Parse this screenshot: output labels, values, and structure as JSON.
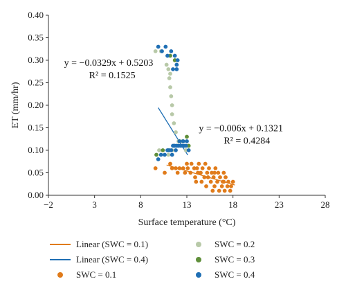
{
  "chart_data": {
    "type": "scatter",
    "xlabel": "Surface temperature (°C)",
    "ylabel": "ET (mm/hr)",
    "xlim": [
      -2,
      28
    ],
    "ylim": [
      0,
      0.4
    ],
    "x_ticks": [
      "−2",
      "3",
      "8",
      "13",
      "18",
      "23",
      "28"
    ],
    "y_ticks": [
      "0.00",
      "0.05",
      "0.10",
      "0.15",
      "0.20",
      "0.25",
      "0.30",
      "0.35",
      "0.40"
    ],
    "colors": {
      "swc01": "#e07b1a",
      "swc02": "#b8c9a8",
      "swc03": "#5f8f3a",
      "swc04": "#1f6fb4",
      "linear01": "#e07b1a",
      "linear04": "#1f6fb4"
    },
    "series": [
      {
        "name": "SWC = 0.1",
        "key": "swc01",
        "points": [
          [
            9.6,
            0.06
          ],
          [
            10.6,
            0.05
          ],
          [
            11.2,
            0.07
          ],
          [
            11.4,
            0.06
          ],
          [
            11.8,
            0.06
          ],
          [
            12.0,
            0.05
          ],
          [
            12.2,
            0.06
          ],
          [
            12.6,
            0.06
          ],
          [
            12.8,
            0.05
          ],
          [
            13.0,
            0.07
          ],
          [
            13.1,
            0.06
          ],
          [
            13.4,
            0.05
          ],
          [
            13.5,
            0.07
          ],
          [
            13.8,
            0.06
          ],
          [
            13.9,
            0.04
          ],
          [
            14.1,
            0.06
          ],
          [
            14.2,
            0.05
          ],
          [
            14.3,
            0.07
          ],
          [
            14.5,
            0.05
          ],
          [
            14.6,
            0.03
          ],
          [
            14.7,
            0.06
          ],
          [
            14.9,
            0.04
          ],
          [
            15.0,
            0.07
          ],
          [
            15.1,
            0.02
          ],
          [
            15.2,
            0.05
          ],
          [
            15.3,
            0.04
          ],
          [
            15.4,
            0.06
          ],
          [
            15.6,
            0.03
          ],
          [
            15.7,
            0.05
          ],
          [
            15.8,
            0.01
          ],
          [
            15.9,
            0.04
          ],
          [
            16.0,
            0.02
          ],
          [
            16.1,
            0.06
          ],
          [
            16.3,
            0.03
          ],
          [
            16.4,
            0.05
          ],
          [
            16.5,
            0.01
          ],
          [
            16.6,
            0.04
          ],
          [
            16.8,
            0.02
          ],
          [
            16.9,
            0.03
          ],
          [
            17.0,
            0.05
          ],
          [
            17.1,
            0.01
          ],
          [
            17.2,
            0.04
          ],
          [
            17.4,
            0.02
          ],
          [
            17.5,
            0.03
          ],
          [
            17.7,
            0.01
          ],
          [
            17.8,
            0.02
          ],
          [
            18.0,
            0.03
          ],
          [
            14.0,
            0.03
          ],
          [
            16.0,
            0.05
          ],
          [
            17.0,
            0.03
          ]
        ]
      },
      {
        "name": "SWC = 0.2",
        "key": "swc02",
        "points": [
          [
            9.6,
            0.32
          ],
          [
            10.2,
            0.32
          ],
          [
            10.8,
            0.29
          ],
          [
            11.0,
            0.28
          ],
          [
            11.2,
            0.27
          ],
          [
            11.1,
            0.26
          ],
          [
            11.2,
            0.24
          ],
          [
            11.3,
            0.22
          ],
          [
            11.4,
            0.2
          ],
          [
            11.4,
            0.18
          ],
          [
            11.6,
            0.16
          ],
          [
            11.8,
            0.14
          ],
          [
            12.1,
            0.12
          ],
          [
            11.0,
            0.09
          ],
          [
            11.4,
            0.1
          ],
          [
            12.0,
            0.11
          ],
          [
            12.5,
            0.12
          ],
          [
            12.9,
            0.1
          ],
          [
            13.1,
            0.11
          ],
          [
            10.0,
            0.1
          ]
        ]
      },
      {
        "name": "SWC = 0.3",
        "key": "swc03",
        "points": [
          [
            9.7,
            0.09
          ],
          [
            10.4,
            0.1
          ],
          [
            11.0,
            0.1
          ],
          [
            11.6,
            0.11
          ],
          [
            12.2,
            0.12
          ],
          [
            12.6,
            0.12
          ],
          [
            13.0,
            0.13
          ],
          [
            13.2,
            0.11
          ],
          [
            11.2,
            0.31
          ],
          [
            11.7,
            0.3
          ]
        ]
      },
      {
        "name": "SWC = 0.4",
        "key": "swc04",
        "points": [
          [
            9.9,
            0.33
          ],
          [
            10.3,
            0.32
          ],
          [
            10.7,
            0.33
          ],
          [
            10.9,
            0.31
          ],
          [
            11.3,
            0.32
          ],
          [
            11.7,
            0.31
          ],
          [
            12.0,
            0.3
          ],
          [
            11.9,
            0.29
          ],
          [
            11.5,
            0.28
          ],
          [
            11.9,
            0.28
          ],
          [
            9.9,
            0.08
          ],
          [
            10.2,
            0.09
          ],
          [
            10.6,
            0.09
          ],
          [
            10.9,
            0.1
          ],
          [
            11.1,
            0.1
          ],
          [
            11.3,
            0.1
          ],
          [
            11.5,
            0.11
          ],
          [
            11.7,
            0.11
          ],
          [
            11.9,
            0.11
          ],
          [
            12.1,
            0.11
          ],
          [
            12.3,
            0.11
          ],
          [
            12.5,
            0.11
          ],
          [
            12.7,
            0.11
          ],
          [
            12.9,
            0.11
          ],
          [
            11.4,
            0.09
          ],
          [
            11.8,
            0.1
          ],
          [
            12.2,
            0.12
          ],
          [
            12.6,
            0.12
          ],
          [
            13.0,
            0.12
          ],
          [
            13.2,
            0.1
          ]
        ]
      }
    ],
    "lines": [
      {
        "name": "Linear (SWC = 0.1)",
        "key": "linear01",
        "slope": -0.006,
        "intercept": 0.1321,
        "x_range": [
          10.8,
          18.2
        ]
      },
      {
        "name": "Linear (SWC = 0.4)",
        "key": "linear04",
        "slope": -0.0329,
        "intercept": 0.5203,
        "x_range": [
          9.9,
          13.1
        ]
      }
    ],
    "annotations": [
      {
        "eq": "y = −0.0329x + 0.5203",
        "r2": "R² = 0.1525",
        "anchor_x": -0.3,
        "anchor_y": 0.288
      },
      {
        "eq": "y = −0.006x + 0.1321",
        "r2": "R² = 0.4284",
        "anchor_x": 14.3,
        "anchor_y": 0.142
      }
    ],
    "legend": {
      "placement": "bottom",
      "items": [
        {
          "label": "Linear (SWC = 0.1)",
          "kind": "line",
          "key": "linear01"
        },
        {
          "label": "SWC = 0.2",
          "kind": "dot",
          "key": "swc02"
        },
        {
          "label": "Linear (SWC = 0.4)",
          "kind": "line",
          "key": "linear04"
        },
        {
          "label": "SWC = 0.3",
          "kind": "dot",
          "key": "swc03"
        },
        {
          "label": "SWC = 0.1",
          "kind": "dot",
          "key": "swc01"
        },
        {
          "label": "SWC = 0.4",
          "kind": "dot",
          "key": "swc04"
        }
      ]
    }
  }
}
